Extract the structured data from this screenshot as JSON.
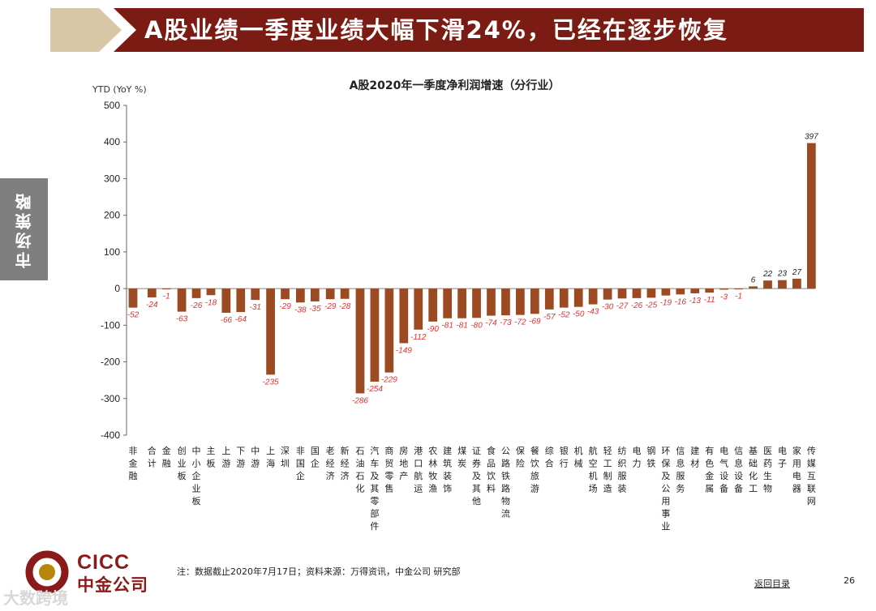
{
  "header": {
    "title": "A股业绩一季度业绩大幅下滑24%，已经在逐步恢复",
    "accent_color": "#7b1c14",
    "chevron_color": "#d8c7a6"
  },
  "side_tab": {
    "label": "市场策略"
  },
  "chart_data": {
    "type": "bar",
    "title": "A股2020年一季度净利润增速（分行业）",
    "ylabel": "YTD (YoY %)",
    "ylim": [
      -400,
      500
    ],
    "yticks": [
      500,
      400,
      300,
      200,
      100,
      0,
      -100,
      -200,
      -300,
      -400
    ],
    "grid": false,
    "bar_color": "#9c4a22",
    "neg_label_color": "#e03030",
    "pos_label_color": "#222222",
    "categories": [
      "非金融",
      "合计",
      "金融",
      "创业板",
      "中小企业板",
      "主板",
      "上游",
      "下游",
      "中游",
      "上海",
      "深圳",
      "非国企",
      "国企",
      "老经济",
      "新经济",
      "石油石化",
      "汽车及其零部件",
      "商贸零售",
      "房地产",
      "港口航运",
      "农林牧渔",
      "建筑装饰",
      "煤炭",
      "证券及其他",
      "食品饮料",
      "公路铁路物流",
      "保险",
      "餐饮旅游",
      "综合",
      "银行",
      "机械",
      "航空机场",
      "轻工制造",
      "纺织服装",
      "电力",
      "钢铁",
      "环保及公用事业",
      "信息服务",
      "建材",
      "有色金属",
      "电气设备",
      "信息设备",
      "基础化工",
      "医药生物",
      "电子",
      "家用电器",
      "传媒互联网"
    ],
    "values": [
      -52,
      -24,
      -1,
      -63,
      -26,
      -18,
      -66,
      -64,
      -31,
      -235,
      -29,
      -38,
      -35,
      -29,
      -28,
      -286,
      -254,
      -229,
      -149,
      -112,
      -90,
      -81,
      -81,
      -80,
      -74,
      -73,
      -72,
      -69,
      -57,
      -52,
      -50,
      -43,
      -30,
      -27,
      -26,
      -25,
      -19,
      -16,
      -13,
      -11,
      -3,
      -1,
      6,
      22,
      23,
      27,
      397
    ],
    "groups": [
      3,
      3,
      3,
      2,
      2,
      2,
      32
    ]
  },
  "footer": {
    "note": "注：数据截止2020年7月17日；资料来源：万得资讯，中金公司 研究部",
    "back_link": "返回目录",
    "page_number": "26"
  },
  "logo": {
    "en": "CICC",
    "cn": "中金公司"
  },
  "watermark": "大数跨境"
}
